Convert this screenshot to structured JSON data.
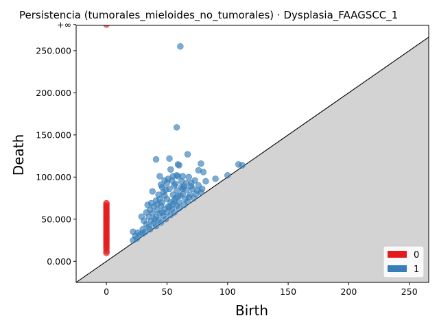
{
  "chart_data": {
    "type": "scatter",
    "title": "Persistencia (tumorales_mieloides_no_tumorales) · Dysplasia_FAAGSCC_1",
    "xlabel": "Birth",
    "ylabel": "Death",
    "xlim": [
      -25,
      266
    ],
    "ylim": [
      -25000,
      280000
    ],
    "x_ticks": [
      0,
      50,
      100,
      150,
      200,
      250
    ],
    "x_tick_labels": [
      "0",
      "50",
      "100",
      "150",
      "200",
      "250"
    ],
    "y_ticks": [
      0,
      50000,
      100000,
      150000,
      200000,
      250000
    ],
    "y_tick_labels": [
      "0.000",
      "50.000",
      "100.000",
      "150.000",
      "200.000",
      "250.000"
    ],
    "infinity_label": "+∞",
    "infinity_y": 281000,
    "diagonal": true,
    "grid": false,
    "legend_position": "lower-right",
    "colors": {
      "0": "#e41a1c",
      "1": "#377eb8",
      "shade": "#d3d3d3",
      "inf_line": "#555555"
    },
    "legend": [
      {
        "label": "0",
        "color": "#e41a1c"
      },
      {
        "label": "1",
        "color": "#377eb8"
      }
    ],
    "series": [
      {
        "name": "0",
        "color": "#e41a1c",
        "points": [
          [
            0,
            281000
          ],
          [
            0,
            69000
          ],
          [
            0,
            67000
          ],
          [
            0,
            65000
          ],
          [
            0,
            63000
          ],
          [
            0,
            61000
          ],
          [
            0,
            59000
          ],
          [
            0,
            57000
          ],
          [
            0,
            55000
          ],
          [
            0,
            53000
          ],
          [
            0,
            51000
          ],
          [
            0,
            49000
          ],
          [
            0,
            47000
          ],
          [
            0,
            45000
          ],
          [
            0,
            43000
          ],
          [
            0,
            41000
          ],
          [
            0,
            39000
          ],
          [
            0,
            37000
          ],
          [
            0,
            35000
          ],
          [
            0,
            33000
          ],
          [
            0,
            31000
          ],
          [
            0,
            29000
          ],
          [
            0,
            27000
          ],
          [
            0,
            25000
          ],
          [
            0,
            23000
          ],
          [
            0,
            21000
          ],
          [
            0,
            19000
          ],
          [
            0,
            17000
          ],
          [
            0,
            15000
          ],
          [
            0,
            12000
          ],
          [
            0,
            10000
          ]
        ]
      },
      {
        "name": "1",
        "color": "#377eb8",
        "points": [
          [
            61,
            255000
          ],
          [
            58,
            159000
          ],
          [
            67,
            127000
          ],
          [
            41,
            121000
          ],
          [
            52,
            122000
          ],
          [
            59,
            115000
          ],
          [
            60,
            114000
          ],
          [
            78,
            116000
          ],
          [
            109,
            115000
          ],
          [
            112,
            114000
          ],
          [
            53,
            109000
          ],
          [
            76,
            108000
          ],
          [
            80,
            106000
          ],
          [
            44,
            101000
          ],
          [
            55,
            101000
          ],
          [
            58,
            102000
          ],
          [
            63,
            101000
          ],
          [
            68,
            100000
          ],
          [
            100,
            102000
          ],
          [
            90,
            98000
          ],
          [
            82,
            95000
          ],
          [
            73,
            96000
          ],
          [
            48,
            96000
          ],
          [
            50,
            93000
          ],
          [
            66,
            93000
          ],
          [
            56,
            90000
          ],
          [
            62,
            88000
          ],
          [
            70,
            89000
          ],
          [
            76,
            90000
          ],
          [
            79,
            86000
          ],
          [
            46,
            88000
          ],
          [
            52,
            86000
          ],
          [
            58,
            84000
          ],
          [
            38,
            83000
          ],
          [
            43,
            79000
          ],
          [
            48,
            78000
          ],
          [
            55,
            79000
          ],
          [
            63,
            80000
          ],
          [
            69,
            79000
          ],
          [
            74,
            80000
          ],
          [
            78,
            82000
          ],
          [
            50,
            74000
          ],
          [
            57,
            75000
          ],
          [
            65,
            74000
          ],
          [
            72,
            75000
          ],
          [
            41,
            72000
          ],
          [
            46,
            70000
          ],
          [
            53,
            70000
          ],
          [
            60,
            70000
          ],
          [
            67,
            71000
          ],
          [
            37,
            69000
          ],
          [
            34,
            67000
          ],
          [
            39,
            65000
          ],
          [
            45,
            66000
          ],
          [
            51,
            65000
          ],
          [
            58,
            66000
          ],
          [
            64,
            67000
          ],
          [
            36,
            61000
          ],
          [
            42,
            61000
          ],
          [
            48,
            62000
          ],
          [
            54,
            62000
          ],
          [
            60,
            63000
          ],
          [
            33,
            58000
          ],
          [
            38,
            57000
          ],
          [
            44,
            57000
          ],
          [
            50,
            58000
          ],
          [
            56,
            58000
          ],
          [
            29,
            53000
          ],
          [
            35,
            53000
          ],
          [
            41,
            53000
          ],
          [
            47,
            54000
          ],
          [
            53,
            55000
          ],
          [
            31,
            48000
          ],
          [
            37,
            48000
          ],
          [
            43,
            49000
          ],
          [
            49,
            50000
          ],
          [
            33,
            44000
          ],
          [
            39,
            45000
          ],
          [
            45,
            46000
          ],
          [
            35,
            41000
          ],
          [
            41,
            42000
          ],
          [
            30,
            38000
          ],
          [
            36,
            38000
          ],
          [
            32,
            35000
          ],
          [
            22,
            35000
          ],
          [
            26,
            34000
          ],
          [
            28,
            32000
          ],
          [
            24,
            30000
          ],
          [
            22,
            25000
          ],
          [
            25,
            27000
          ],
          [
            30,
            33000
          ],
          [
            40,
            50000
          ],
          [
            46,
            58000
          ],
          [
            52,
            64000
          ],
          [
            56,
            72000
          ],
          [
            61,
            78000
          ],
          [
            66,
            85000
          ],
          [
            71,
            86000
          ],
          [
            62,
            95000
          ],
          [
            54,
            96000
          ],
          [
            57,
            92000
          ],
          [
            64,
            89000
          ],
          [
            49,
            85000
          ],
          [
            47,
            82000
          ],
          [
            59,
            77000
          ],
          [
            44,
            74000
          ],
          [
            42,
            68000
          ],
          [
            55,
            68000
          ],
          [
            68,
            76000
          ],
          [
            75,
            84000
          ],
          [
            70,
            93000
          ],
          [
            59,
            101000
          ],
          [
            51,
            98000
          ],
          [
            45,
            91000
          ],
          [
            63,
            86000
          ]
        ]
      }
    ]
  }
}
